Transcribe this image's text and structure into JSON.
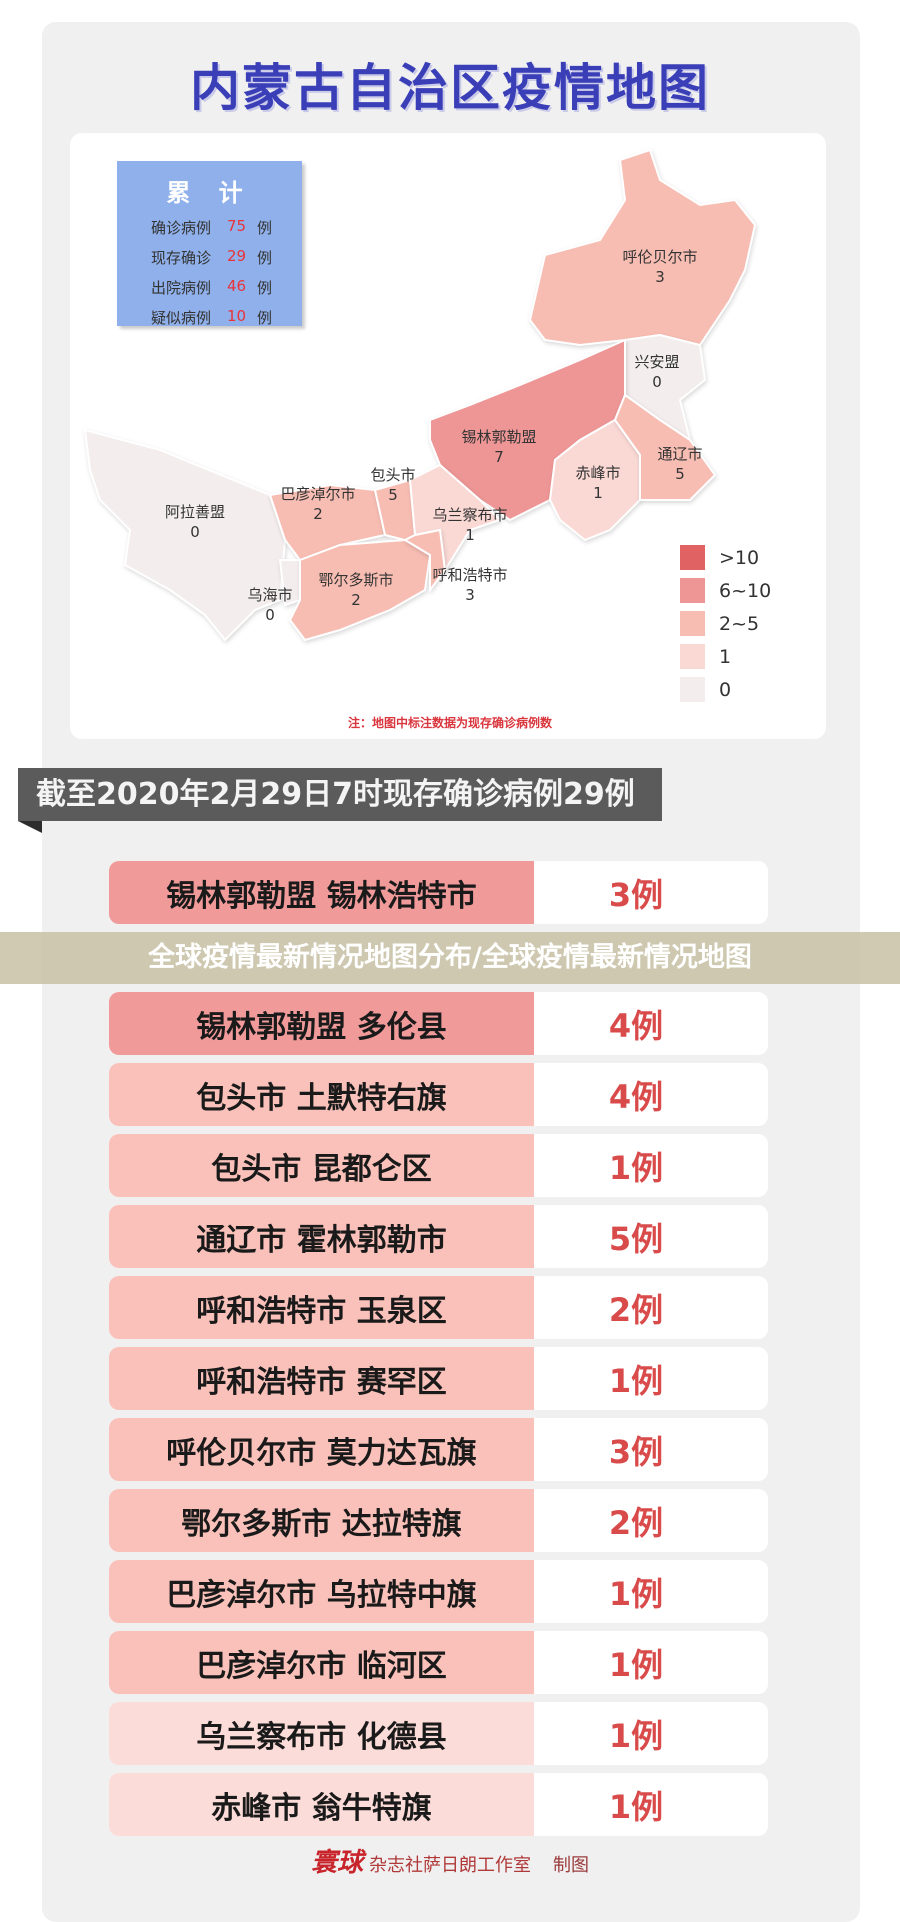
{
  "title": "内蒙古自治区疫情地图",
  "summary": {
    "title": "累 计",
    "items": [
      {
        "label": "确诊病例",
        "value": "75",
        "unit": "例"
      },
      {
        "label": "现存确诊",
        "value": "29",
        "unit": "例"
      },
      {
        "label": "出院病例",
        "value": "46",
        "unit": "例"
      },
      {
        "label": "疑似病例",
        "value": "10",
        "unit": "例"
      }
    ]
  },
  "map": {
    "regions": [
      {
        "name": "呼伦贝尔市",
        "value": "3"
      },
      {
        "name": "兴安盟",
        "value": "0"
      },
      {
        "name": "锡林郭勒盟",
        "value": "7"
      },
      {
        "name": "赤峰市",
        "value": "1"
      },
      {
        "name": "通辽市",
        "value": "5"
      },
      {
        "name": "阿拉善盟",
        "value": "0"
      },
      {
        "name": "巴彦淖尔市",
        "value": "2"
      },
      {
        "name": "包头市",
        "value": "5"
      },
      {
        "name": "乌兰察布市",
        "value": "1"
      },
      {
        "name": "乌海市",
        "value": "0"
      },
      {
        "name": "鄂尔多斯市",
        "value": "2"
      },
      {
        "name": "呼和浩特市",
        "value": "3"
      }
    ],
    "legend": [
      {
        "label": ">10",
        "color": "#e06262"
      },
      {
        "label": "6~10",
        "color": "#ee9696"
      },
      {
        "label": "2~5",
        "color": "#f7bdb3"
      },
      {
        "label": "1",
        "color": "#fad9d5"
      },
      {
        "label": "0",
        "color": "#f3eded"
      }
    ],
    "note": "注：地图中标注数据为现存确诊病例数"
  },
  "banner": "截至2020年2月29日7时现存确诊病例29例",
  "rows": [
    {
      "place": "锡林郭勒盟 锡林浩特市",
      "count": "3例",
      "color": "#f09a9a"
    },
    {
      "place": "锡林郭勒盟 多伦县",
      "count": "4例",
      "color": "#f09a9a"
    },
    {
      "place": "包头市 土默特右旗",
      "count": "4例",
      "color": "#f9c1b9"
    },
    {
      "place": "包头市 昆都仑区",
      "count": "1例",
      "color": "#f9c1b9"
    },
    {
      "place": "通辽市 霍林郭勒市",
      "count": "5例",
      "color": "#f9c1b9"
    },
    {
      "place": "呼和浩特市 玉泉区",
      "count": "2例",
      "color": "#f9c1b9"
    },
    {
      "place": "呼和浩特市 赛罕区",
      "count": "1例",
      "color": "#f9c1b9"
    },
    {
      "place": "呼伦贝尔市 莫力达瓦旗",
      "count": "3例",
      "color": "#f9c1b9"
    },
    {
      "place": "鄂尔多斯市 达拉特旗",
      "count": "2例",
      "color": "#f9c1b9"
    },
    {
      "place": "巴彦淖尔市 乌拉特中旗",
      "count": "1例",
      "color": "#f9c1b9"
    },
    {
      "place": "巴彦淖尔市 临河区",
      "count": "1例",
      "color": "#f9c1b9"
    },
    {
      "place": "乌兰察布市 化德县",
      "count": "1例",
      "color": "#fbdcd8"
    },
    {
      "place": "赤峰市 翁牛特旗",
      "count": "1例",
      "color": "#fbdcd8"
    }
  ],
  "overlay_caption": "全球疫情最新情况地图分布/全球疫情最新情况地图",
  "footer": {
    "logo": "寰球",
    "studio": "杂志社萨日朗工作室",
    "made": "制图"
  }
}
